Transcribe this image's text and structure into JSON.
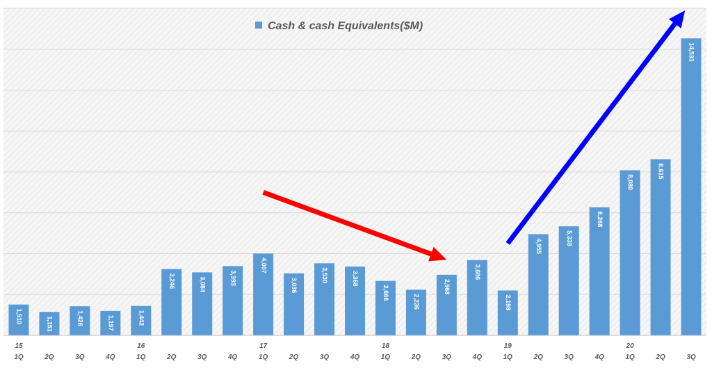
{
  "chart_data": {
    "type": "bar",
    "legend": {
      "label": "Cash & cash Equivalents($M)",
      "position": "top-center"
    },
    "categories": [
      "1Q",
      "2Q",
      "3Q",
      "4Q",
      "1Q",
      "2Q",
      "3Q",
      "4Q",
      "1Q",
      "2Q",
      "3Q",
      "4Q",
      "1Q",
      "2Q",
      "3Q",
      "4Q",
      "1Q",
      "2Q",
      "3Q",
      "4Q",
      "1Q",
      "2Q",
      "3Q"
    ],
    "year_labels": [
      "15",
      "",
      "",
      "",
      "16",
      "",
      "",
      "",
      "17",
      "",
      "",
      "",
      "18",
      "",
      "",
      "",
      "19",
      "",
      "",
      "",
      "20",
      "",
      ""
    ],
    "values": [
      1510,
      1151,
      1426,
      1197,
      1442,
      3246,
      3084,
      3393,
      4007,
      3036,
      3530,
      3368,
      2666,
      2236,
      2968,
      3686,
      2198,
      4955,
      5338,
      6268,
      8080,
      8615,
      14531
    ],
    "value_labels": [
      "1,510",
      "1,151",
      "1,426",
      "1,197",
      "1,442",
      "3,246",
      "3,084",
      "3,393",
      "4,007",
      "3,036",
      "3,530",
      "3,368",
      "2,666",
      "2,236",
      "2,968",
      "3,686",
      "2,198",
      "4,955",
      "5,338",
      "6,268",
      "8,080",
      "8,615",
      "14,531"
    ],
    "ylim": [
      0,
      16000
    ],
    "grid": true,
    "annotations": [
      {
        "type": "arrow",
        "color": "#ff0000",
        "from": {
          "x": 8,
          "y": 7000
        },
        "to": {
          "x": 14,
          "y": 3700
        }
      },
      {
        "type": "arrow",
        "color": "#0000ff",
        "from": {
          "x": 16,
          "y": 4500
        },
        "to": {
          "x": 21.8,
          "y": 15900
        }
      }
    ]
  },
  "colors": {
    "bar": "#5b9bd5",
    "plot_bg": "#f2f2f2",
    "grid": "#d9d9d9",
    "label_text": "#ffffff",
    "axis_text": "#595959"
  }
}
